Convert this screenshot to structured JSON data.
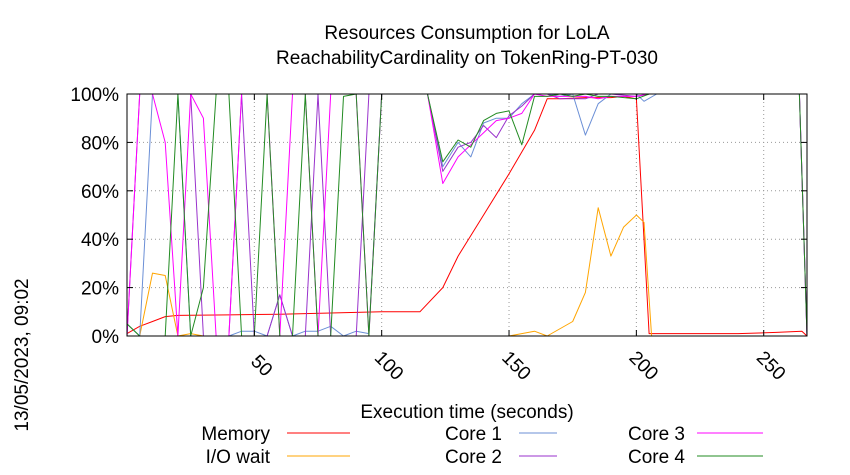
{
  "chart_data": {
    "type": "line",
    "title_line1": "Resources Consumption for LoLA",
    "title_line2": "ReachabilityCardinality on TokenRing-PT-030",
    "xlabel": "Execution time (seconds)",
    "ylabel": "",
    "side_label": "13/05/2023, 09:02",
    "xlim": [
      0,
      267
    ],
    "ylim": [
      0,
      100
    ],
    "x_ticks": [
      50,
      100,
      150,
      200,
      250
    ],
    "y_ticks": [
      0,
      20,
      40,
      60,
      80,
      100
    ],
    "y_tick_labels": [
      "0%",
      "20%",
      "40%",
      "60%",
      "80%",
      "100%"
    ],
    "grid": true,
    "legend_position": "bottom",
    "series": [
      {
        "name": "Memory",
        "color": "#ff0000",
        "points": [
          [
            0,
            1
          ],
          [
            5,
            4
          ],
          [
            10,
            6
          ],
          [
            15,
            8
          ],
          [
            20,
            8.5
          ],
          [
            40,
            8.7
          ],
          [
            60,
            9
          ],
          [
            80,
            9.5
          ],
          [
            100,
            10
          ],
          [
            115,
            10
          ],
          [
            124,
            20
          ],
          [
            130,
            33
          ],
          [
            140,
            50
          ],
          [
            150,
            67
          ],
          [
            160,
            85
          ],
          [
            165,
            98
          ],
          [
            170,
            98
          ],
          [
            180,
            98.5
          ],
          [
            190,
            98.5
          ],
          [
            195,
            99
          ],
          [
            200,
            98
          ],
          [
            205,
            1
          ],
          [
            220,
            1
          ],
          [
            240,
            1
          ],
          [
            255,
            1.5
          ],
          [
            265,
            2
          ],
          [
            267,
            0
          ]
        ]
      },
      {
        "name": "I/O wait",
        "color": "#ffa500",
        "points": [
          [
            0,
            0
          ],
          [
            5,
            0
          ],
          [
            10,
            26
          ],
          [
            15,
            25
          ],
          [
            20,
            0
          ],
          [
            25,
            1
          ],
          [
            30,
            0
          ],
          [
            50,
            0
          ],
          [
            100,
            0
          ],
          [
            150,
            0
          ],
          [
            160,
            2
          ],
          [
            165,
            0
          ],
          [
            175,
            6
          ],
          [
            180,
            18
          ],
          [
            185,
            53
          ],
          [
            190,
            33
          ],
          [
            195,
            45
          ],
          [
            200,
            50
          ],
          [
            203,
            47
          ],
          [
            206,
            0
          ],
          [
            267,
            0
          ]
        ]
      },
      {
        "name": "Core 1",
        "color": "#6b8fd6",
        "points": [
          [
            0,
            5
          ],
          [
            5,
            0
          ],
          [
            10,
            100
          ],
          [
            15,
            100
          ],
          [
            20,
            100
          ],
          [
            25,
            0
          ],
          [
            30,
            0
          ],
          [
            35,
            0
          ],
          [
            40,
            0
          ],
          [
            45,
            2
          ],
          [
            50,
            2
          ],
          [
            55,
            0
          ],
          [
            60,
            17
          ],
          [
            65,
            0
          ],
          [
            70,
            2
          ],
          [
            75,
            2
          ],
          [
            80,
            4
          ],
          [
            85,
            0
          ],
          [
            90,
            2
          ],
          [
            95,
            1
          ],
          [
            100,
            100
          ],
          [
            110,
            100
          ],
          [
            118,
            100
          ],
          [
            124,
            70
          ],
          [
            130,
            80
          ],
          [
            135,
            74
          ],
          [
            140,
            88
          ],
          [
            145,
            90
          ],
          [
            150,
            90
          ],
          [
            155,
            96
          ],
          [
            160,
            100
          ],
          [
            165,
            100
          ],
          [
            170,
            99
          ],
          [
            175,
            100
          ],
          [
            180,
            83
          ],
          [
            185,
            96
          ],
          [
            190,
            100
          ],
          [
            200,
            100
          ],
          [
            203,
            97
          ],
          [
            208,
            100
          ],
          [
            220,
            100
          ],
          [
            240,
            100
          ],
          [
            260,
            100
          ],
          [
            264,
            100
          ],
          [
            267,
            0
          ]
        ]
      },
      {
        "name": "Core 2",
        "color": "#9932cc",
        "points": [
          [
            0,
            0
          ],
          [
            5,
            100
          ],
          [
            10,
            100
          ],
          [
            15,
            100
          ],
          [
            20,
            100
          ],
          [
            25,
            100
          ],
          [
            30,
            0
          ],
          [
            35,
            0
          ],
          [
            40,
            0
          ],
          [
            45,
            100
          ],
          [
            50,
            0
          ],
          [
            55,
            0
          ],
          [
            60,
            17
          ],
          [
            65,
            0
          ],
          [
            70,
            0
          ],
          [
            75,
            100
          ],
          [
            80,
            0
          ],
          [
            85,
            0
          ],
          [
            90,
            0
          ],
          [
            95,
            100
          ],
          [
            100,
            100
          ],
          [
            110,
            100
          ],
          [
            118,
            100
          ],
          [
            124,
            68
          ],
          [
            130,
            78
          ],
          [
            135,
            80
          ],
          [
            140,
            87
          ],
          [
            145,
            82
          ],
          [
            150,
            91
          ],
          [
            155,
            95
          ],
          [
            160,
            100
          ],
          [
            165,
            100
          ],
          [
            170,
            98
          ],
          [
            175,
            98
          ],
          [
            180,
            98
          ],
          [
            185,
            100
          ],
          [
            190,
            100
          ],
          [
            200,
            99
          ],
          [
            205,
            100
          ],
          [
            220,
            100
          ],
          [
            240,
            100
          ],
          [
            260,
            100
          ],
          [
            264,
            100
          ],
          [
            267,
            0
          ]
        ]
      },
      {
        "name": "Core 3",
        "color": "#ff00ff",
        "points": [
          [
            0,
            0
          ],
          [
            5,
            100
          ],
          [
            10,
            100
          ],
          [
            15,
            80
          ],
          [
            20,
            0
          ],
          [
            25,
            100
          ],
          [
            30,
            90
          ],
          [
            35,
            0
          ],
          [
            40,
            0
          ],
          [
            45,
            100
          ],
          [
            50,
            100
          ],
          [
            55,
            100
          ],
          [
            60,
            0
          ],
          [
            65,
            100
          ],
          [
            70,
            100
          ],
          [
            75,
            0
          ],
          [
            80,
            100
          ],
          [
            85,
            100
          ],
          [
            90,
            100
          ],
          [
            95,
            0
          ],
          [
            100,
            100
          ],
          [
            110,
            100
          ],
          [
            118,
            100
          ],
          [
            124,
            63
          ],
          [
            130,
            74
          ],
          [
            135,
            79
          ],
          [
            140,
            84
          ],
          [
            145,
            89
          ],
          [
            150,
            90
          ],
          [
            155,
            92
          ],
          [
            160,
            100
          ],
          [
            165,
            99
          ],
          [
            170,
            99
          ],
          [
            175,
            99
          ],
          [
            180,
            99
          ],
          [
            185,
            98
          ],
          [
            190,
            99
          ],
          [
            200,
            99
          ],
          [
            205,
            100
          ],
          [
            220,
            100
          ],
          [
            240,
            100
          ],
          [
            260,
            100
          ],
          [
            264,
            100
          ],
          [
            267,
            0
          ]
        ]
      },
      {
        "name": "Core 4",
        "color": "#228b22",
        "points": [
          [
            0,
            5
          ],
          [
            5,
            0
          ],
          [
            10,
            0
          ],
          [
            15,
            0
          ],
          [
            20,
            100
          ],
          [
            25,
            0
          ],
          [
            30,
            20
          ],
          [
            35,
            100
          ],
          [
            40,
            100
          ],
          [
            45,
            0
          ],
          [
            50,
            0
          ],
          [
            55,
            100
          ],
          [
            60,
            0
          ],
          [
            65,
            0
          ],
          [
            70,
            100
          ],
          [
            75,
            0
          ],
          [
            80,
            0
          ],
          [
            85,
            99
          ],
          [
            90,
            100
          ],
          [
            95,
            0
          ],
          [
            100,
            100
          ],
          [
            110,
            100
          ],
          [
            118,
            100
          ],
          [
            124,
            72
          ],
          [
            130,
            81
          ],
          [
            135,
            78
          ],
          [
            140,
            89
          ],
          [
            145,
            92
          ],
          [
            150,
            93
          ],
          [
            155,
            79
          ],
          [
            160,
            99
          ],
          [
            165,
            99
          ],
          [
            170,
            100
          ],
          [
            175,
            99
          ],
          [
            180,
            100
          ],
          [
            185,
            99
          ],
          [
            190,
            99
          ],
          [
            200,
            98
          ],
          [
            205,
            100
          ],
          [
            220,
            100
          ],
          [
            240,
            100
          ],
          [
            260,
            100
          ],
          [
            264,
            100
          ],
          [
            267,
            0
          ]
        ]
      }
    ]
  }
}
